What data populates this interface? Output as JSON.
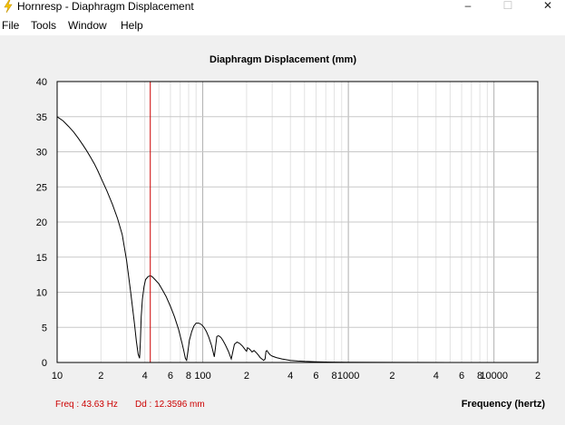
{
  "window": {
    "title": "Hornresp - Diaphragm Displacement",
    "minimize_glyph": "–",
    "maximize_glyph": "☐",
    "close_glyph": "✕"
  },
  "menu": {
    "items": [
      {
        "label": "File"
      },
      {
        "label": "Tools"
      },
      {
        "label": "Window"
      },
      {
        "label": "Help"
      }
    ]
  },
  "status": {
    "freq": "Freq : 43.63 Hz",
    "dd": "Dd : 12.3596 mm"
  },
  "colors": {
    "cursor": "#cc0000",
    "curve": "#000000",
    "grid": "#c8c8c8",
    "status_text": "#cc0000"
  },
  "chart_data": {
    "type": "line",
    "title": "Diaphragm Displacement (mm)",
    "xlabel": "Frequency (hertz)",
    "ylabel": "",
    "x_scale": "log",
    "xlim": [
      10,
      20000
    ],
    "ylim": [
      0,
      40
    ],
    "grid": true,
    "y_ticks": [
      0,
      5,
      10,
      15,
      20,
      25,
      30,
      35,
      40
    ],
    "x_tick_labels": [
      {
        "value": 10,
        "label": "10"
      },
      {
        "value": 20,
        "label": "2"
      },
      {
        "value": 40,
        "label": "4"
      },
      {
        "value": 60,
        "label": "6"
      },
      {
        "value": 80,
        "label": "8"
      },
      {
        "value": 100,
        "label": "100"
      },
      {
        "value": 200,
        "label": "2"
      },
      {
        "value": 400,
        "label": "4"
      },
      {
        "value": 600,
        "label": "6"
      },
      {
        "value": 800,
        "label": "8"
      },
      {
        "value": 1000,
        "label": "1000"
      },
      {
        "value": 2000,
        "label": "2"
      },
      {
        "value": 4000,
        "label": "4"
      },
      {
        "value": 6000,
        "label": "6"
      },
      {
        "value": 8000,
        "label": "8"
      },
      {
        "value": 10000,
        "label": "10000"
      },
      {
        "value": 20000,
        "label": "2"
      }
    ],
    "cursor_x": 43.63,
    "series": [
      {
        "x": [
          10,
          11,
          12,
          13,
          14,
          15,
          16,
          17,
          18,
          19,
          20,
          22,
          24,
          26,
          28,
          30,
          32,
          34,
          35,
          36,
          36.8,
          37.3,
          37.8,
          38.5,
          39.5,
          40.5,
          42,
          43.63,
          45,
          47,
          50,
          53,
          56,
          60,
          64,
          68,
          72,
          74,
          76,
          77.5,
          79,
          81,
          84,
          87,
          90,
          94,
          98,
          102,
          106,
          110,
          115,
          120,
          125,
          128,
          131,
          134,
          138,
          143,
          150,
          157,
          165,
          172,
          180,
          188,
          196,
          200,
          203,
          207,
          212,
          218,
          225,
          233,
          240,
          248,
          255,
          262,
          268,
          272,
          276,
          282,
          290,
          300,
          320,
          350,
          400,
          450,
          500,
          600,
          700,
          800,
          1000,
          2000,
          5000,
          10000,
          20000
        ],
        "y": [
          35.0,
          34.4,
          33.6,
          32.8,
          31.9,
          31.0,
          30.1,
          29.2,
          28.3,
          27.3,
          26.3,
          24.4,
          22.5,
          20.5,
          18.2,
          14.5,
          10.0,
          5.5,
          3.0,
          1.2,
          0.6,
          3.0,
          6.5,
          9.0,
          10.8,
          11.8,
          12.2,
          12.36,
          12.2,
          11.8,
          11.2,
          10.3,
          9.4,
          8.0,
          6.5,
          4.8,
          2.8,
          1.7,
          0.6,
          0.3,
          1.5,
          3.2,
          4.4,
          5.2,
          5.6,
          5.6,
          5.4,
          5.0,
          4.4,
          3.6,
          2.4,
          0.8,
          3.7,
          3.8,
          3.7,
          3.5,
          3.1,
          2.5,
          1.6,
          0.5,
          2.6,
          2.9,
          2.7,
          2.3,
          1.8,
          1.6,
          2.1,
          2.0,
          1.8,
          1.5,
          1.7,
          1.4,
          1.1,
          0.7,
          0.5,
          0.3,
          0.5,
          1.6,
          1.7,
          1.4,
          1.1,
          0.9,
          0.7,
          0.5,
          0.3,
          0.2,
          0.15,
          0.1,
          0.07,
          0.05,
          0.03,
          0.01,
          0.0,
          0.0,
          0.0
        ]
      }
    ]
  }
}
